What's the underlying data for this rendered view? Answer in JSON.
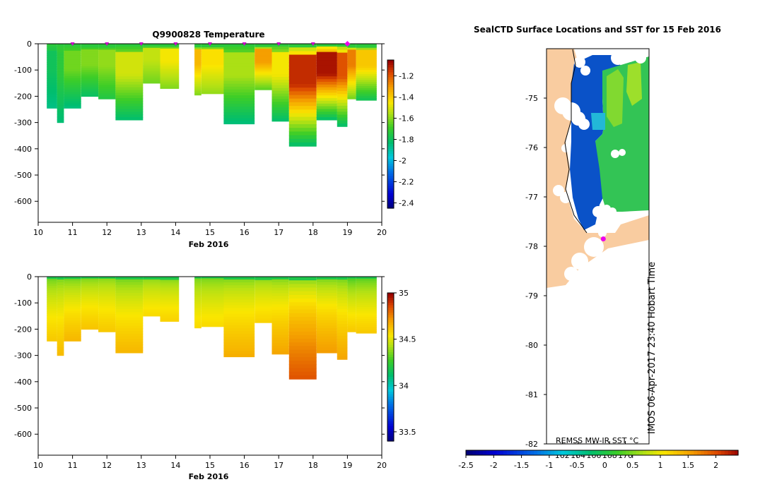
{
  "chart_data": [
    {
      "type": "heatmap",
      "id": "temperature-section",
      "title": "Q9900828  Temperature",
      "xlabel": "Feb 2016",
      "x_ticks": [
        "10",
        "11",
        "12",
        "13",
        "14",
        "15",
        "16",
        "17",
        "18",
        "19",
        "20"
      ],
      "xlim": [
        10,
        20
      ],
      "ylim": [
        -680,
        0
      ],
      "y_ticks": [
        "0",
        "-100",
        "-200",
        "-300",
        "-400",
        "-500",
        "-600"
      ],
      "y_tick_values": [
        0,
        -100,
        -200,
        -300,
        -400,
        -500,
        -600
      ],
      "surface_markers": [
        11,
        12,
        13,
        14,
        15,
        16,
        17,
        18
      ],
      "current_marker": 19,
      "colorbar": {
        "min": -2.45,
        "max": -1.05,
        "ticks": [
          "-1.2",
          "-1.4",
          "-1.6",
          "-1.8",
          "-2",
          "-2.2",
          "-2.4"
        ],
        "tick_values": [
          -1.2,
          -1.4,
          -1.6,
          -1.8,
          -2,
          -2.2,
          -2.4
        ]
      },
      "profiles": [
        {
          "t0": 10.25,
          "t1": 10.55,
          "depth": 245,
          "surface": -1.72,
          "peak": -1.78,
          "deep": -1.85
        },
        {
          "t0": 10.55,
          "t1": 10.75,
          "depth": 300,
          "surface": -1.7,
          "peak": -1.72,
          "deep": -1.83
        },
        {
          "t0": 10.75,
          "t1": 11.25,
          "depth": 245,
          "surface": -1.72,
          "peak": -1.62,
          "deep": -1.84
        },
        {
          "t0": 11.25,
          "t1": 11.75,
          "depth": 200,
          "surface": -1.72,
          "peak": -1.6,
          "deep": -1.8
        },
        {
          "t0": 11.75,
          "t1": 12.25,
          "depth": 210,
          "surface": -1.72,
          "peak": -1.58,
          "deep": -1.74
        },
        {
          "t0": 12.25,
          "t1": 13.05,
          "depth": 290,
          "surface": -1.73,
          "peak": -1.5,
          "deep": -1.82
        },
        {
          "t0": 13.05,
          "t1": 13.55,
          "depth": 150,
          "surface": -1.72,
          "peak": -1.52,
          "deep": -1.62
        },
        {
          "t0": 13.55,
          "t1": 14.1,
          "depth": 170,
          "surface": -1.72,
          "peak": -1.45,
          "deep": -1.6
        },
        {
          "t0": 14.55,
          "t1": 14.75,
          "depth": 195,
          "surface": -1.72,
          "peak": -1.35,
          "deep": -1.6
        },
        {
          "t0": 14.75,
          "t1": 15.4,
          "depth": 190,
          "surface": -1.72,
          "peak": -1.43,
          "deep": -1.58
        },
        {
          "t0": 15.4,
          "t1": 16.3,
          "depth": 305,
          "surface": -1.72,
          "peak": -1.55,
          "deep": -1.84
        },
        {
          "t0": 16.3,
          "t1": 16.8,
          "depth": 175,
          "surface": -1.7,
          "peak": -1.3,
          "deep": -1.65
        },
        {
          "t0": 16.8,
          "t1": 17.3,
          "depth": 295,
          "surface": -1.7,
          "peak": -1.45,
          "deep": -1.82
        },
        {
          "t0": 17.3,
          "t1": 18.1,
          "depth": 390,
          "surface": -1.62,
          "peak": -1.12,
          "deep": -1.82
        },
        {
          "t0": 18.1,
          "t1": 18.7,
          "depth": 290,
          "surface": -1.55,
          "peak": -1.08,
          "deep": -1.82
        },
        {
          "t0": 18.7,
          "t1": 19.0,
          "depth": 315,
          "surface": -1.62,
          "peak": -1.18,
          "deep": -1.82
        },
        {
          "t0": 19.0,
          "t1": 19.25,
          "depth": 210,
          "surface": -1.65,
          "peak": -1.25,
          "deep": -1.62
        },
        {
          "t0": 19.25,
          "t1": 19.85,
          "depth": 215,
          "surface": -1.68,
          "peak": -1.38,
          "deep": -1.78
        }
      ]
    },
    {
      "type": "heatmap",
      "id": "salinity-section",
      "title": "",
      "xlabel": "Feb 2016",
      "x_ticks": [
        "10",
        "11",
        "12",
        "13",
        "14",
        "15",
        "16",
        "17",
        "18",
        "19",
        "20"
      ],
      "xlim": [
        10,
        20
      ],
      "ylim": [
        -680,
        0
      ],
      "y_ticks": [
        "0",
        "-100",
        "-200",
        "-300",
        "-400",
        "-500",
        "-600"
      ],
      "y_tick_values": [
        0,
        -100,
        -200,
        -300,
        -400,
        -500,
        -600
      ],
      "colorbar": {
        "min": 33.4,
        "max": 35.0,
        "ticks": [
          "35",
          "34.5",
          "34",
          "33.5"
        ],
        "tick_values": [
          35,
          34.5,
          34,
          33.5
        ]
      },
      "profiles": [
        {
          "t0": 10.25,
          "t1": 10.55,
          "depth": 245,
          "surface": 34.28,
          "deep": 34.62
        },
        {
          "t0": 10.55,
          "t1": 10.75,
          "depth": 300,
          "surface": 34.3,
          "deep": 34.65
        },
        {
          "t0": 10.75,
          "t1": 11.25,
          "depth": 245,
          "surface": 34.28,
          "deep": 34.66
        },
        {
          "t0": 11.25,
          "t1": 11.75,
          "depth": 200,
          "surface": 34.3,
          "deep": 34.63
        },
        {
          "t0": 11.75,
          "t1": 12.25,
          "depth": 210,
          "surface": 34.32,
          "deep": 34.62
        },
        {
          "t0": 12.25,
          "t1": 13.05,
          "depth": 290,
          "surface": 34.28,
          "deep": 34.66
        },
        {
          "t0": 13.05,
          "t1": 13.55,
          "depth": 150,
          "surface": 34.32,
          "deep": 34.58
        },
        {
          "t0": 13.55,
          "t1": 14.1,
          "depth": 170,
          "surface": 34.3,
          "deep": 34.6
        },
        {
          "t0": 14.55,
          "t1": 14.75,
          "depth": 195,
          "surface": 34.3,
          "deep": 34.58
        },
        {
          "t0": 14.75,
          "t1": 15.4,
          "depth": 190,
          "surface": 34.3,
          "deep": 34.58
        },
        {
          "t0": 15.4,
          "t1": 16.3,
          "depth": 305,
          "surface": 34.3,
          "deep": 34.68
        },
        {
          "t0": 16.3,
          "t1": 16.8,
          "depth": 175,
          "surface": 34.32,
          "deep": 34.6
        },
        {
          "t0": 16.8,
          "t1": 17.3,
          "depth": 295,
          "surface": 34.3,
          "deep": 34.7
        },
        {
          "t0": 17.3,
          "t1": 18.1,
          "depth": 390,
          "surface": 34.28,
          "deep": 34.85
        },
        {
          "t0": 18.1,
          "t1": 18.7,
          "depth": 290,
          "surface": 34.28,
          "deep": 34.72
        },
        {
          "t0": 18.7,
          "t1": 19.0,
          "depth": 315,
          "surface": 34.28,
          "deep": 34.7
        },
        {
          "t0": 19.0,
          "t1": 19.25,
          "depth": 210,
          "surface": 34.22,
          "deep": 34.62
        },
        {
          "t0": 19.25,
          "t1": 19.85,
          "depth": 215,
          "surface": 34.24,
          "deep": 34.62
        }
      ]
    },
    {
      "type": "heatmap",
      "id": "sst-map",
      "title": "SealCTD Surface Locations and SST for 15 Feb 2016",
      "y_ticks": [
        "-75",
        "-76",
        "-77",
        "-78",
        "-79",
        "-80",
        "-81",
        "-82"
      ],
      "y_tick_values": [
        -75,
        -76,
        -77,
        -78,
        -79,
        -80,
        -81,
        -82
      ],
      "ylim": [
        -82,
        -74.0
      ],
      "x_ticks": [
        "162",
        "164",
        "166",
        "168",
        "170"
      ],
      "x_tick_values": [
        162,
        164,
        166,
        168,
        170
      ],
      "xlim": [
        160.0,
        173.0
      ],
      "vertical_label": "IMOS 06-Apr-2017 23:40 Hobart Time",
      "source_label": "REMSS MW-IR SST °C",
      "seal_location": {
        "lon": 167.2,
        "lat": -77.85
      },
      "colorbar": {
        "min": -2.5,
        "max": 2.4,
        "ticks": [
          "-2.5",
          "-2",
          "-1.5",
          "-1",
          "-0.5",
          "0",
          "0.5",
          "1",
          "1.5",
          "2"
        ],
        "tick_values": [
          -2.5,
          -2,
          -1.5,
          -1,
          -0.5,
          0,
          0.5,
          1,
          1.5,
          2
        ]
      }
    }
  ]
}
